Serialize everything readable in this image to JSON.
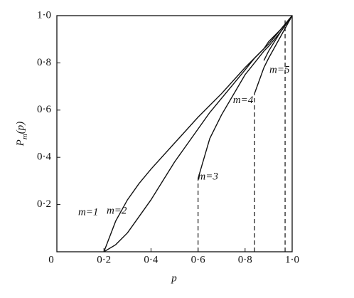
{
  "chart_data": {
    "type": "line",
    "xlabel": "p",
    "ylabel": {
      "main": "P",
      "sub": "m",
      "tail": "(p)"
    },
    "x": [
      0.2,
      0.25,
      0.3,
      0.35,
      0.4,
      0.5,
      0.6,
      0.65,
      0.7,
      0.8,
      0.84,
      0.88,
      0.9,
      0.95,
      1.0
    ],
    "series": [
      {
        "name": "m=1",
        "color": "#111",
        "values": [
          0,
          0.13,
          0.22,
          0.29,
          0.35,
          0.46,
          0.57,
          0.62,
          0.67,
          0.78,
          0.82,
          0.86,
          0.89,
          0.94,
          1.0
        ]
      },
      {
        "name": "m=2",
        "color": "#111",
        "values": [
          0,
          0.03,
          0.08,
          0.15,
          0.22,
          0.38,
          0.52,
          0.59,
          0.65,
          0.77,
          0.82,
          0.86,
          0.88,
          0.94,
          1.0
        ]
      },
      {
        "name": "m=3",
        "color": "#111",
        "values": [
          null,
          null,
          null,
          null,
          null,
          null,
          0.31,
          0.48,
          0.58,
          0.75,
          0.8,
          0.85,
          0.87,
          0.93,
          1.0
        ]
      },
      {
        "name": "m=4",
        "color": "#111",
        "values": [
          null,
          null,
          null,
          null,
          null,
          null,
          null,
          null,
          null,
          null,
          0.67,
          0.78,
          0.82,
          0.91,
          1.0
        ]
      },
      {
        "name": "m=5",
        "color": "#111",
        "values": [
          null,
          null,
          null,
          null,
          null,
          null,
          null,
          null,
          null,
          null,
          null,
          0.81,
          0.85,
          0.93,
          1.0
        ]
      }
    ],
    "dashed_lines": [
      {
        "x": 0.6,
        "y": 0.31
      },
      {
        "x": 0.84,
        "y": 0.67
      },
      {
        "x": 0.97,
        "y": 0.98
      }
    ],
    "xlim": [
      0,
      1
    ],
    "ylim": [
      0,
      1
    ],
    "xticks": [
      0,
      {
        "value": 0.2,
        "label": "0·2"
      },
      {
        "value": 0.4,
        "label": "0·4"
      },
      {
        "value": 0.6,
        "label": "0·6"
      },
      {
        "value": 0.8,
        "label": "0·8"
      },
      {
        "value": 1.0,
        "label": "1·0"
      }
    ],
    "yticks": [
      {
        "value": 0.2,
        "label": "0·2"
      },
      {
        "value": 0.4,
        "label": "0·4"
      },
      {
        "value": 0.6,
        "label": "0·6"
      },
      {
        "value": 0.8,
        "label": "0·8"
      },
      {
        "value": 1.0,
        "label": "1·0"
      }
    ]
  }
}
